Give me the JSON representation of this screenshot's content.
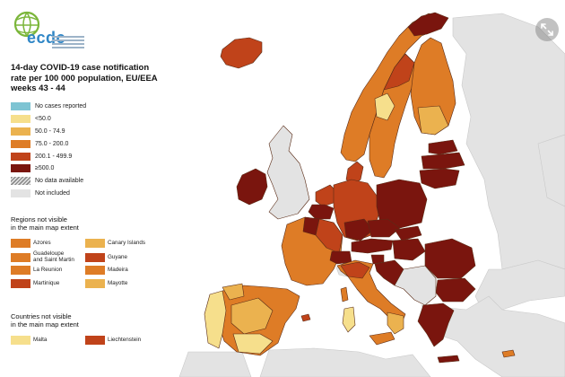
{
  "logo": {
    "text": "ecdc",
    "icon": "globe-icon"
  },
  "title_lines": [
    "14-day COVID-19 case notification",
    "rate per 100 000 population, EU/EEA",
    "weeks 43 - 44"
  ],
  "legend": [
    {
      "label": "No cases reported",
      "color": "#7ec4d3"
    },
    {
      "label": "<50.0",
      "color": "#f6df8c"
    },
    {
      "label": "50.0 - 74.9",
      "color": "#ebb24f"
    },
    {
      "label": "75.0 - 200.0",
      "color": "#de7c26"
    },
    {
      "label": "200.1 - 499.9",
      "color": "#c0431a"
    },
    {
      "label": "≥500.0",
      "color": "#7a150e"
    },
    {
      "label": "No data available",
      "color": "hatched"
    },
    {
      "label": "Not included",
      "color": "#e3e3e3"
    }
  ],
  "regions_title_lines": [
    "Regions not visible",
    "in the main map extent"
  ],
  "regions": [
    {
      "label": "Azores",
      "color": "#de7c26"
    },
    {
      "label": "Canary Islands",
      "color": "#ebb24f"
    },
    {
      "label": "Guadeloupe and Saint Martin",
      "label_lines": [
        "Guadeloupe",
        "and Saint Martin"
      ],
      "color": "#de7c26"
    },
    {
      "label": "Guyane",
      "color": "#c0431a"
    },
    {
      "label": "La Reunion",
      "color": "#de7c26"
    },
    {
      "label": "Madeira",
      "color": "#de7c26"
    },
    {
      "label": "Martinique",
      "color": "#c0431a"
    },
    {
      "label": "Mayotte",
      "color": "#ebb24f"
    }
  ],
  "countries_title_lines": [
    "Countries not visible",
    "in the main map extent"
  ],
  "countries": [
    {
      "label": "Malta",
      "color": "#f6df8c"
    },
    {
      "label": "Liechtenstein",
      "color": "#c0431a"
    }
  ],
  "colors": {
    "sea": "#ffffff",
    "not_included": "#e3e3e3",
    "border": "#6b3a20"
  },
  "expand_button": {
    "icon": "expand-arrows-icon"
  }
}
